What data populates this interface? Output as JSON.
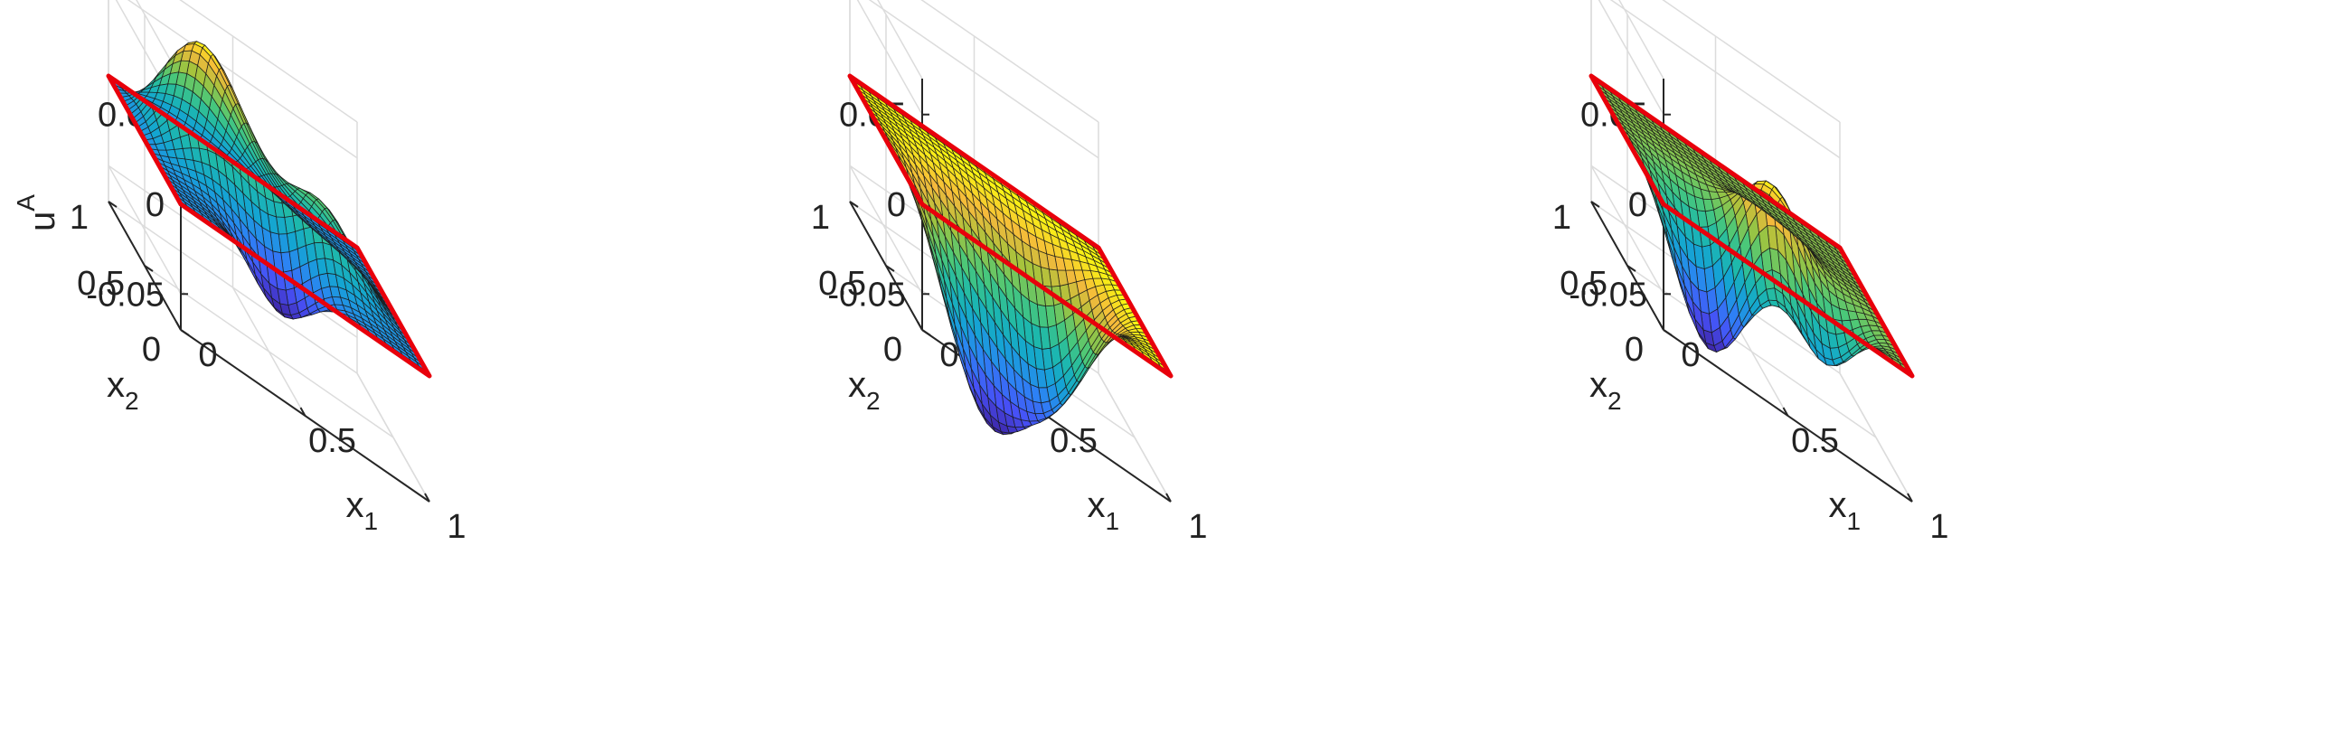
{
  "chart_data": [
    {
      "type": "surface",
      "panel": "left",
      "title": "",
      "zlabel": "u",
      "zlabel_superscript": "A",
      "xlabel": "x",
      "xlabel_subscript": "1",
      "ylabel": "x",
      "ylabel_subscript": "2",
      "xticks": [
        "0",
        "0.5",
        "1"
      ],
      "yticks": [
        "0",
        "0.5",
        "1"
      ],
      "zticks": [
        "-0.05",
        "0",
        "0.05"
      ],
      "xlim": [
        0,
        1
      ],
      "ylim": [
        0,
        1
      ],
      "zlim": [
        -0.07,
        0.07
      ],
      "grid": true,
      "colormap": "parula",
      "grid_resolution": 31,
      "boundary_color": "#e8000b",
      "bumps": [
        {
          "x1": 0.2,
          "x2": 0.75,
          "amplitude": 0.075,
          "sigma": 0.2
        },
        {
          "x1": 0.75,
          "x2": 0.45,
          "amplitude": 0.028,
          "sigma": 0.15
        },
        {
          "x1": 0.45,
          "x2": 0.12,
          "amplitude": -0.042,
          "sigma": 0.13
        }
      ]
    },
    {
      "type": "surface",
      "panel": "middle",
      "title": "",
      "zlabel": "",
      "xlabel": "x",
      "xlabel_subscript": "1",
      "ylabel": "x",
      "ylabel_subscript": "2",
      "xticks": [
        "0",
        "0.5",
        "1"
      ],
      "yticks": [
        "0",
        "0.5",
        "1"
      ],
      "zticks": [
        "-0.05",
        "0",
        "0.05"
      ],
      "xlim": [
        0,
        1
      ],
      "ylim": [
        0,
        1
      ],
      "zlim": [
        -0.07,
        0.07
      ],
      "grid": true,
      "colormap": "parula",
      "grid_resolution": 31,
      "boundary_color": "#e8000b",
      "bumps": [
        {
          "x1": 0.3,
          "x2": 0.3,
          "amplitude": -0.085,
          "sigma": 0.2
        },
        {
          "x1": 0.72,
          "x2": 0.52,
          "amplitude": -0.055,
          "sigma": 0.2
        }
      ]
    },
    {
      "type": "surface",
      "panel": "right",
      "title": "",
      "zlabel": "",
      "xlabel": "x",
      "xlabel_subscript": "1",
      "ylabel": "x",
      "ylabel_subscript": "2",
      "xticks": [
        "0",
        "0.5",
        "1"
      ],
      "yticks": [
        "0",
        "0.5",
        "1"
      ],
      "zticks": [
        "-0.05",
        "0",
        "0.05"
      ],
      "xlim": [
        0,
        1
      ],
      "ylim": [
        0,
        1
      ],
      "zlim": [
        -0.07,
        0.07
      ],
      "grid": true,
      "colormap": "parula",
      "grid_resolution": 31,
      "boundary_color": "#e8000b",
      "bumps": [
        {
          "x1": 0.2,
          "x2": 0.25,
          "amplitude": -0.09,
          "sigma": 0.17
        },
        {
          "x1": 0.6,
          "x2": 0.45,
          "amplitude": 0.03,
          "sigma": 0.13
        },
        {
          "x1": 0.75,
          "x2": 0.25,
          "amplitude": -0.05,
          "sigma": 0.14
        }
      ]
    }
  ]
}
